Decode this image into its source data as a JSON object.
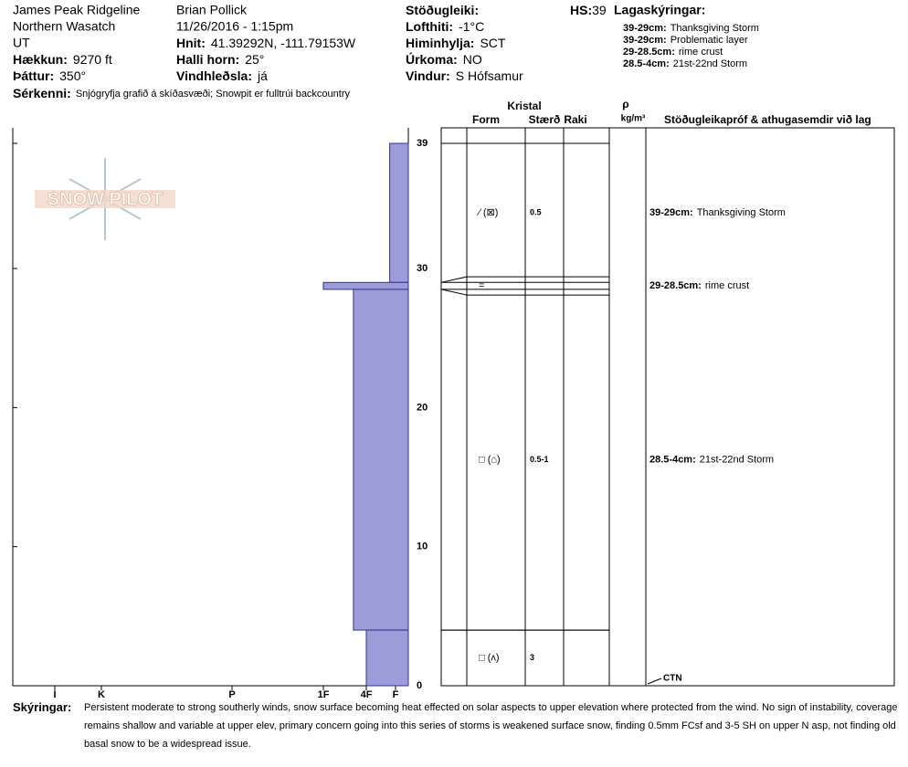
{
  "header": {
    "location": [
      "James Peak Ridgeline",
      "Northern Wasatch",
      "UT"
    ],
    "observer": "Brian Pollick",
    "datetime": "11/26/2016 - 1:15pm",
    "fields": [
      {
        "label": "Hækkun:",
        "value": "9270 ft"
      },
      {
        "label": "Þáttur:",
        "value": "350°"
      },
      {
        "label": "Hnit:",
        "value": "41.39292N, -111.79153W"
      },
      {
        "label": "Halli horn:",
        "value": "25°"
      },
      {
        "label": "Vindhleðsla:",
        "value": "já"
      },
      {
        "label": "Stöðugleiki:",
        "value": ""
      },
      {
        "label": "Lofthiti:",
        "value": "-1°C"
      },
      {
        "label": "Himinhylja:",
        "value": "SCT"
      },
      {
        "label": "Úrkoma:",
        "value": "NO"
      },
      {
        "label": "Vindur:",
        "value": "S Hófsamur"
      }
    ],
    "hs": {
      "label": "HS:",
      "value": "39"
    },
    "features": {
      "label": "Sérkenni:",
      "value": "Snjógryfja grafið á skíðasvæði; Snowpit er fulltrúi backcountry"
    }
  },
  "legend": {
    "title": "Lagaskýringar:",
    "items": [
      {
        "range": "39-29cm:",
        "text": "Thanksgiving Storm"
      },
      {
        "range": "39-29cm:",
        "text": "Problematic layer"
      },
      {
        "range": "29-28.5cm:",
        "text": "rime crust"
      },
      {
        "range": "28.5-4cm:",
        "text": "21st-22nd Storm"
      }
    ]
  },
  "logo": "SNOW PILOT",
  "chart_data": {
    "type": "hardness-profile",
    "ylim": [
      0,
      39
    ],
    "yticks": [
      0,
      10,
      20,
      30,
      39
    ],
    "xticks": [
      {
        "value": 6,
        "label": "I"
      },
      {
        "value": 5,
        "label": "K"
      },
      {
        "value": 4,
        "label": "P"
      },
      {
        "value": 3,
        "label": "1F"
      },
      {
        "value": 2,
        "label": "4F"
      },
      {
        "value": 1,
        "label": "F"
      }
    ],
    "color": "#9c9cd9",
    "layers": [
      {
        "top": 39,
        "bottom": 29,
        "hardness": 1.2,
        "form": "⁄ (⊠)",
        "size": "0.5",
        "comment": {
          "label": "39-29cm:",
          "text": "Thanksgiving Storm"
        }
      },
      {
        "top": 29,
        "bottom": 28.5,
        "hardness": 3,
        "form": "=",
        "size": null,
        "comment": {
          "label": "29-28.5cm:",
          "text": "rime crust"
        }
      },
      {
        "top": 28.5,
        "bottom": 4,
        "hardness": 2.3,
        "form": "□ (⌂)",
        "size": "0.5-1",
        "comment": {
          "label": "28.5-4cm:",
          "text": "21st-22nd Storm"
        }
      },
      {
        "top": 4,
        "bottom": 0,
        "hardness": 2,
        "form": "□ (ʌ)",
        "size": "3",
        "comment": null
      }
    ],
    "table_headers": {
      "crystal": "Kristal",
      "form": "Form",
      "size": "Stærð",
      "moisture": "Raki",
      "density": "ρ",
      "density_unit": "kg/m³",
      "tests": "Stöðugleikapróf & athugasemdir við lag"
    },
    "tests": [
      {
        "label": "CTN",
        "height": 0
      }
    ]
  },
  "notes": {
    "label": "Skýringar:",
    "text": "Persistent moderate to strong southerly winds, snow surface becoming heat effected on solar aspects to upper elevation where protected from the wind. No sign of instability, coverage remains shallow and variable at upper elev, primary concern going into this series of storms is weakened surface snow, finding 0.5mm FCsf and 3-5 SH on upper N asp, not finding old basal snow to be a widespread issue."
  }
}
